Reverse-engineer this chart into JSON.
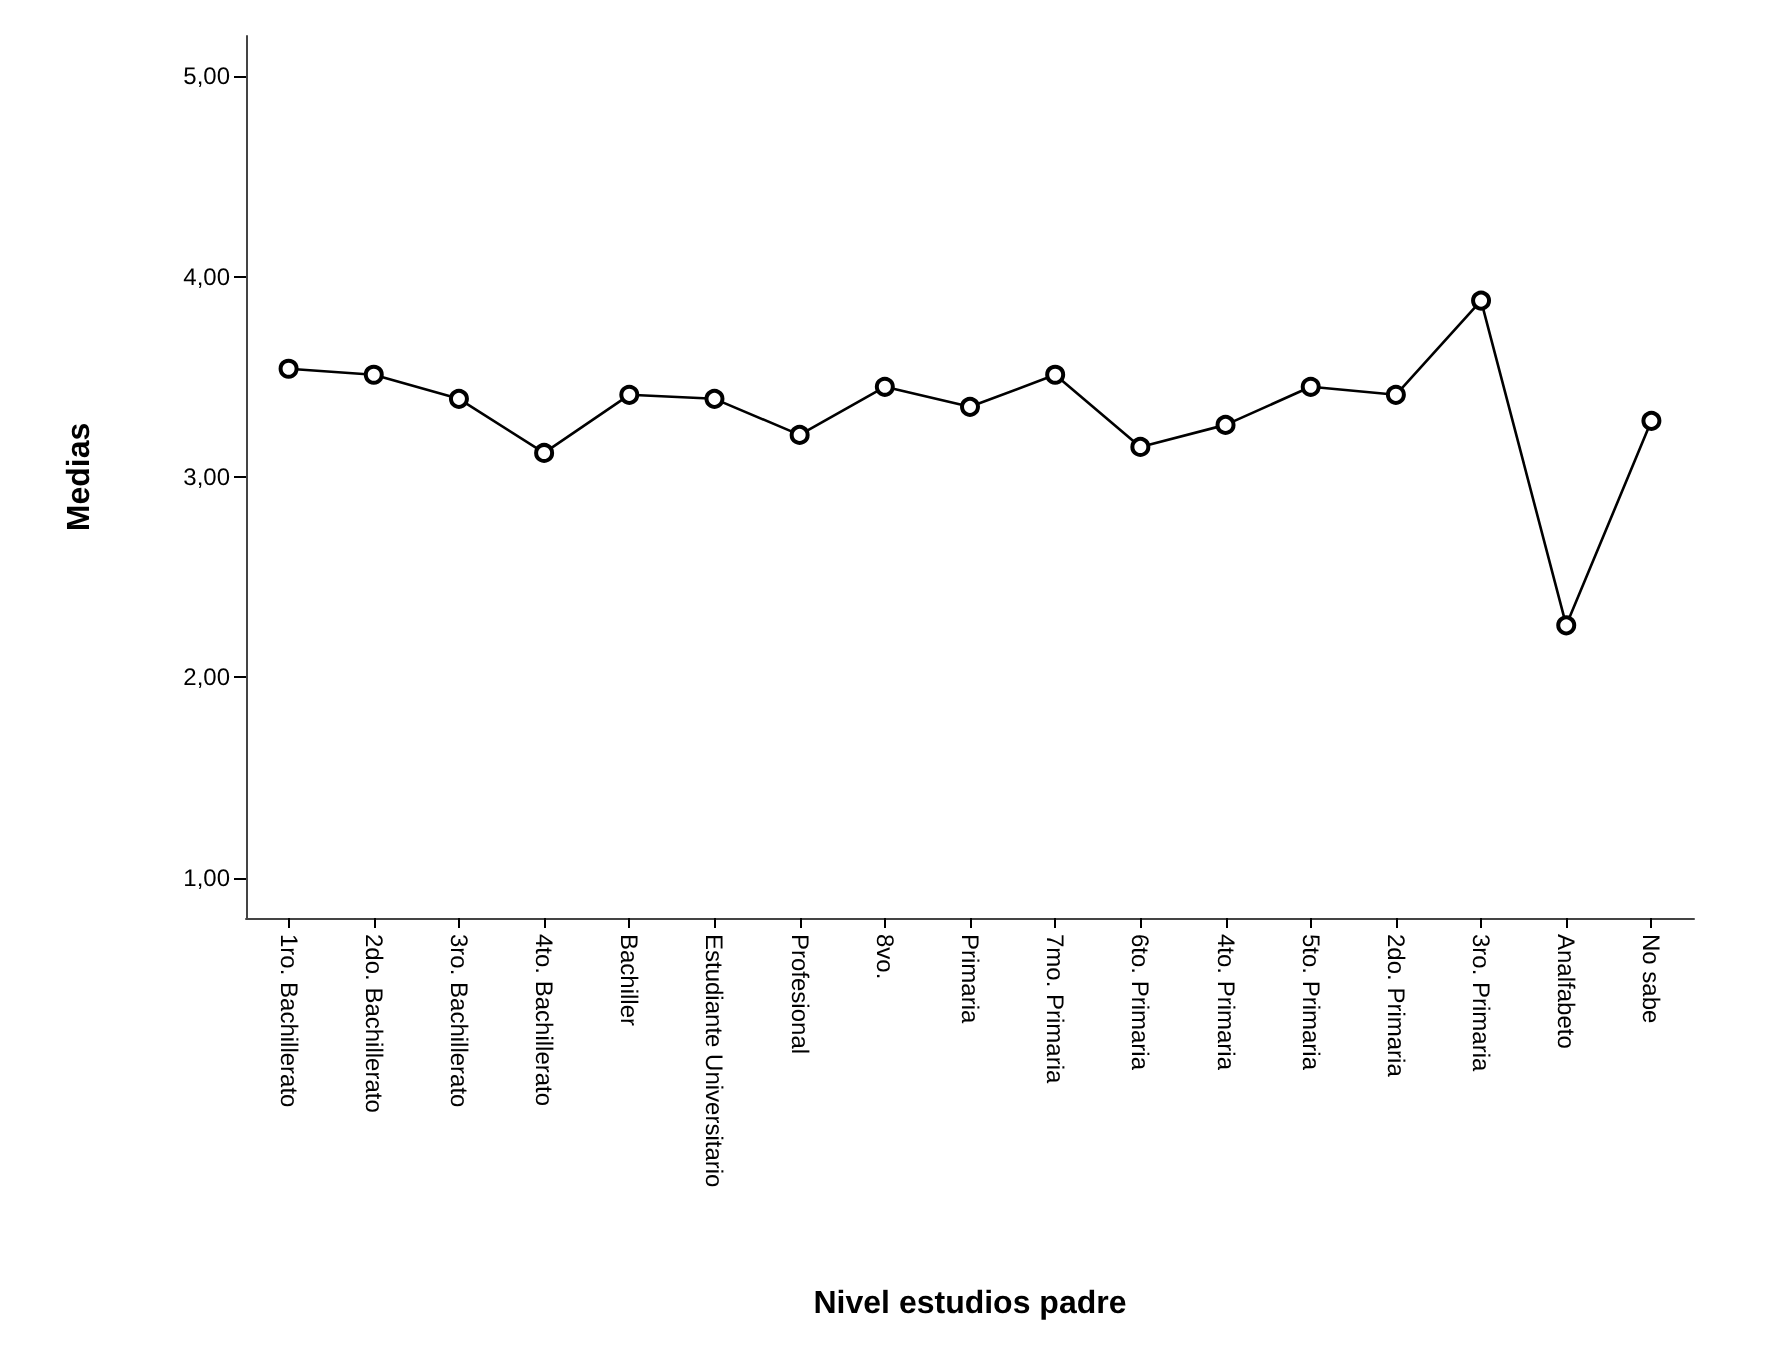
{
  "chart_data": {
    "type": "line",
    "xlabel": "Nivel estudios padre",
    "ylabel": "Medias",
    "categories": [
      "1ro. Bachillerato",
      "2do. Bachillerato",
      "3ro. Bachillerato",
      "4to. Bachillerato",
      "Bachiller",
      "Estudiante Universitario",
      "Profesional",
      "8vo.",
      "Primaria",
      "7mo. Primaria",
      "6to. Primaria",
      "4to. Primaria",
      "5to. Primaria",
      "2do. Primaria",
      "3ro. Primaria",
      "Analfabeto",
      "No sabe"
    ],
    "series": [
      {
        "color": "#000000",
        "values": [
          3.54,
          3.51,
          3.39,
          3.12,
          3.41,
          3.39,
          3.21,
          3.45,
          3.35,
          3.51,
          3.15,
          3.26,
          3.45,
          3.41,
          3.88,
          2.26,
          3.28
        ]
      }
    ],
    "ylim": [
      0.8,
      5.2
    ],
    "yticks": [
      {
        "value": 1,
        "label": "1,00"
      },
      {
        "value": 2,
        "label": "2,00"
      },
      {
        "value": 3,
        "label": "3,00"
      },
      {
        "value": 4,
        "label": "4,00"
      },
      {
        "value": 5,
        "label": "5,00"
      }
    ],
    "grid": false,
    "marker": "circle",
    "line_style": "solid"
  }
}
